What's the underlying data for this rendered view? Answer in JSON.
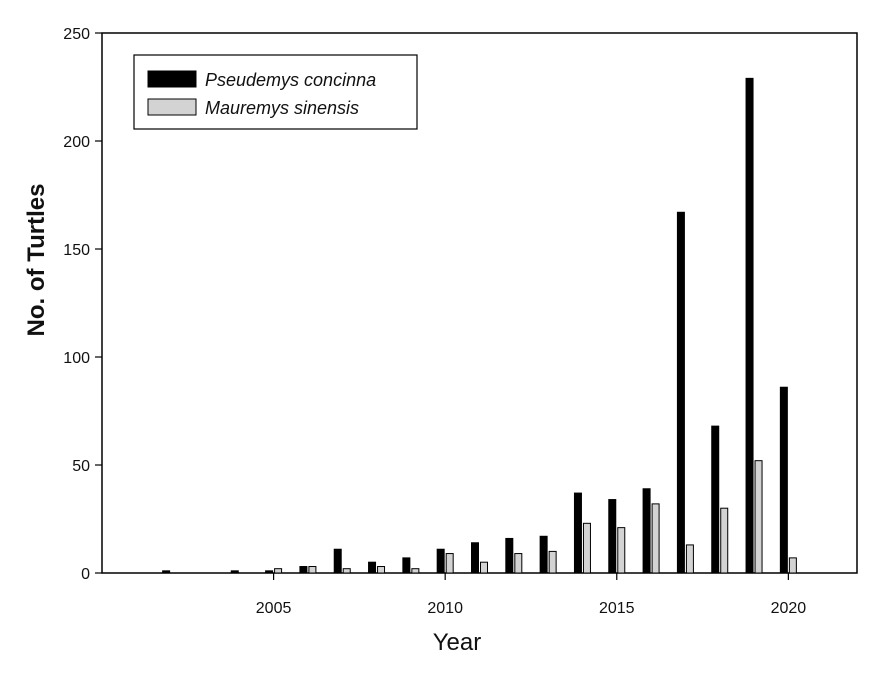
{
  "chart_data": {
    "type": "bar",
    "title": "",
    "xlabel": "Year",
    "ylabel": "No. of Turtles",
    "xlim": [
      2000,
      2022
    ],
    "ylim": [
      0,
      250
    ],
    "x_ticks": [
      2005,
      2010,
      2015,
      2020
    ],
    "y_ticks": [
      0,
      50,
      100,
      150,
      200,
      250
    ],
    "grid": false,
    "legend_position": "top-left",
    "series": [
      {
        "name": "Pseudemys concinna",
        "color": "#000000",
        "x": [
          2002,
          2003,
          2004,
          2005,
          2006,
          2007,
          2008,
          2009,
          2010,
          2011,
          2012,
          2013,
          2014,
          2015,
          2016,
          2017,
          2018,
          2019,
          2020
        ],
        "values": [
          1,
          0,
          1,
          1,
          3,
          11,
          5,
          7,
          11,
          14,
          16,
          17,
          37,
          34,
          39,
          167,
          68,
          229,
          86
        ]
      },
      {
        "name": "Mauremys sinensis",
        "color": "#d3d3d3",
        "x": [
          2002,
          2003,
          2004,
          2005,
          2006,
          2007,
          2008,
          2009,
          2010,
          2011,
          2012,
          2013,
          2014,
          2015,
          2016,
          2017,
          2018,
          2019,
          2020
        ],
        "values": [
          0,
          0,
          0,
          2,
          3,
          2,
          3,
          2,
          9,
          5,
          9,
          10,
          23,
          21,
          32,
          13,
          30,
          52,
          7
        ]
      }
    ]
  }
}
